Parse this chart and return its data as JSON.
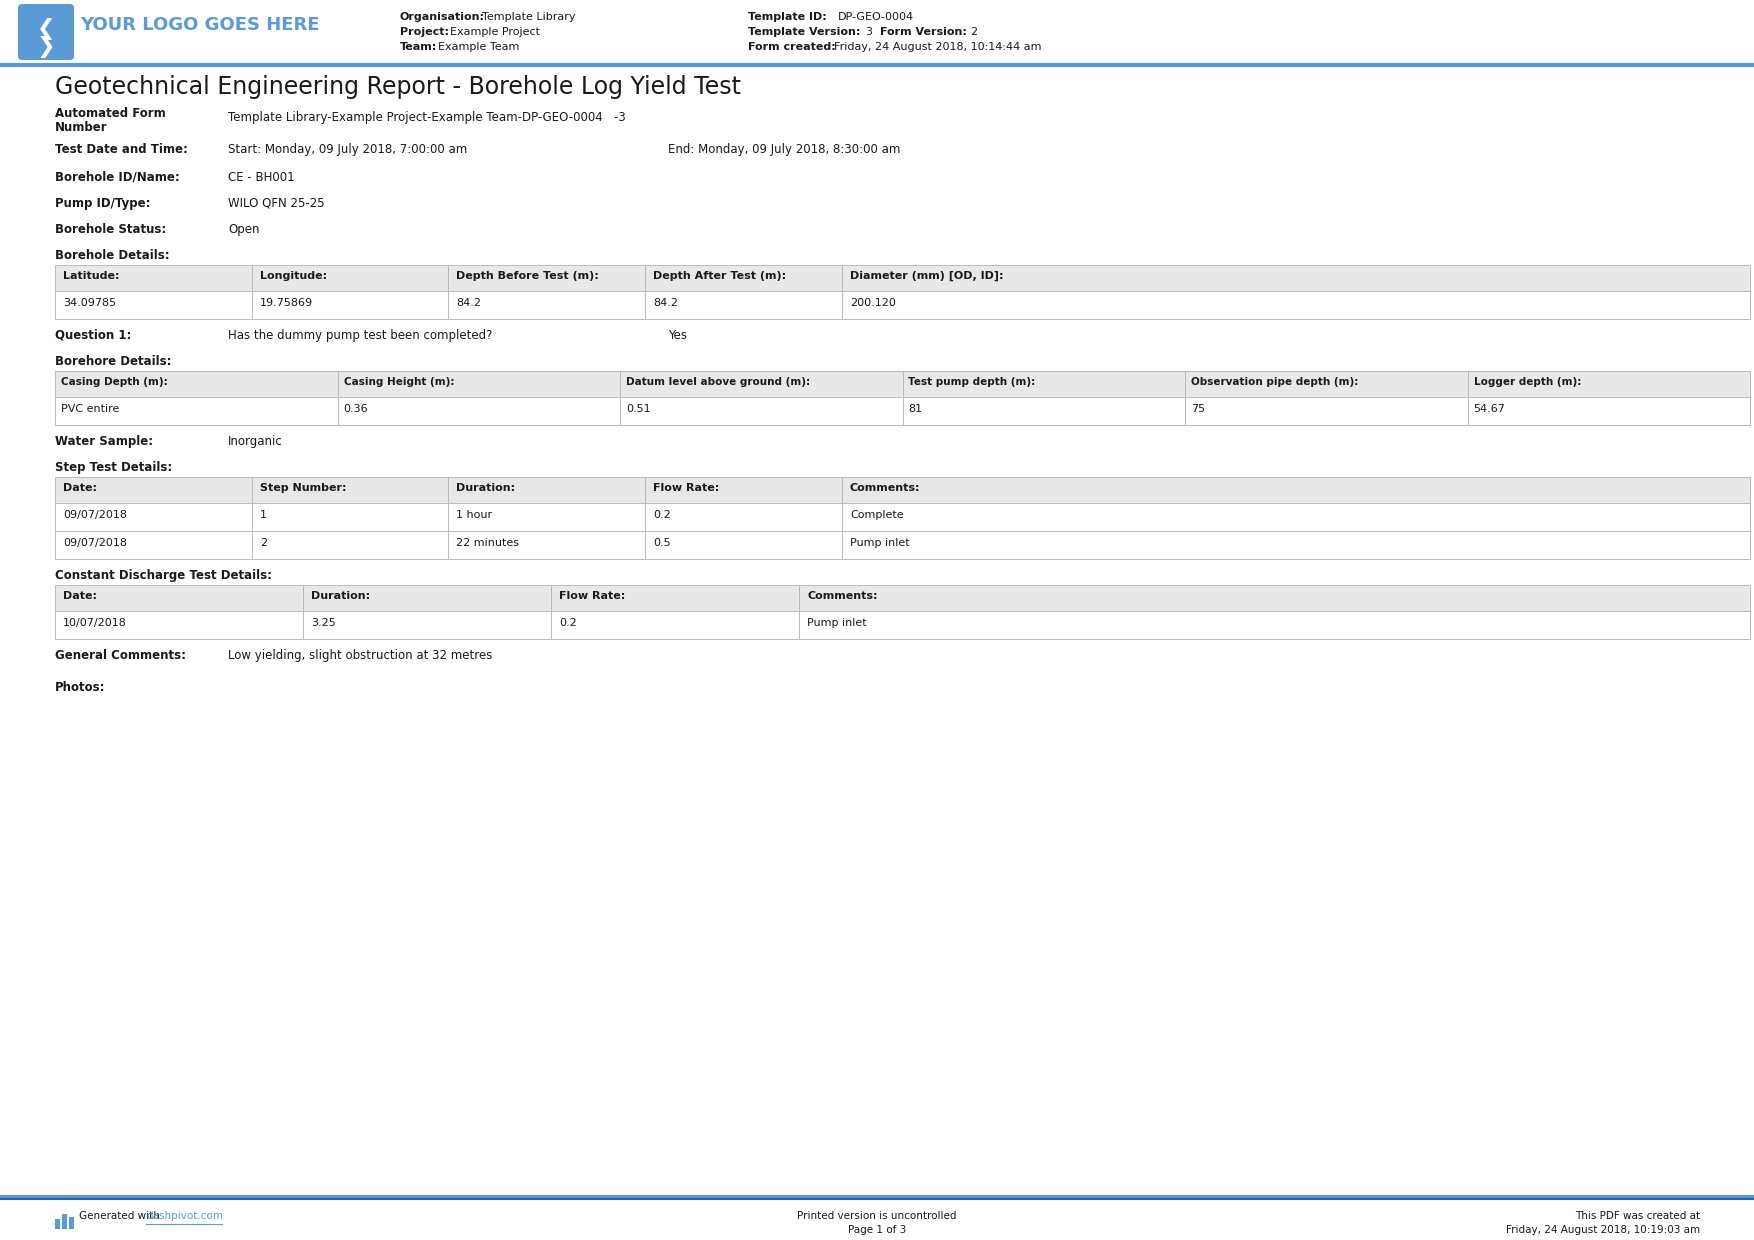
{
  "title": "Geotechnical Engineering Report - Borehole Log Yield Test",
  "header": {
    "logo_text": "YOUR LOGO GOES HERE",
    "org_label": "Organisation:",
    "org_value": "Template Library",
    "project_label": "Project:",
    "project_value": "Example Project",
    "team_label": "Team:",
    "team_value": "Example Team",
    "template_id_label": "Template ID:",
    "template_id_value": "DP-GEO-0004",
    "template_ver_label": "Template Version:",
    "template_ver_value": "3  ",
    "form_ver_label": "Form Version:",
    "form_ver_value": "2",
    "form_created_label": "Form created:",
    "form_created_value": "Friday, 24 August 2018, 10:14:44 am"
  },
  "auto_form_label_1": "Automated Form",
  "auto_form_label_2": "Number",
  "auto_form_value": "Template Library-Example Project-Example Team-DP-GEO-0004   -3",
  "test_date_label": "Test Date and Time:",
  "test_date_start": "Start: Monday, 09 July 2018, 7:00:00 am",
  "test_date_end": "End: Monday, 09 July 2018, 8:30:00 am",
  "borehole_id_label": "Borehole ID/Name:",
  "borehole_id_value": "CE - BH001",
  "pump_id_label": "Pump ID/Type:",
  "pump_id_value": "WILO QFN 25-25",
  "borehole_status_label": "Borehole Status:",
  "borehole_status_value": "Open",
  "borehole_details_label": "Borehole Details:",
  "borehole_table1_headers": [
    "Latitude:",
    "Longitude:",
    "Depth Before Test (m):",
    "Depth After Test (m):",
    "Diameter (mm) [OD, ID]:"
  ],
  "borehole_table1_values": [
    "34.09785",
    "19.75869",
    "84.2",
    "84.2",
    "200.120"
  ],
  "question1_label": "Question 1:",
  "question1_text": "Has the dummy pump test been completed?",
  "question1_answer": "Yes",
  "borehole_details2_label": "Borehore Details:",
  "borehole_table2_headers": [
    "Casing Depth (m):",
    "Casing Height (m):",
    "Datum level above ground (m):",
    "Test pump depth (m):",
    "Observation pipe depth (m):",
    "Logger depth (m):"
  ],
  "borehole_table2_values": [
    "PVC entire",
    "0.36",
    "0.51",
    "81",
    "75",
    "54.67"
  ],
  "water_sample_label": "Water Sample:",
  "water_sample_value": "Inorganic",
  "step_test_label": "Step Test Details:",
  "step_table_headers": [
    "Date:",
    "Step Number:",
    "Duration:",
    "Flow Rate:",
    "Comments:"
  ],
  "step_table_rows": [
    [
      "09/07/2018",
      "1",
      "1 hour",
      "0.2",
      "Complete"
    ],
    [
      "09/07/2018",
      "2",
      "22 minutes",
      "0.5",
      "Pump inlet"
    ]
  ],
  "constant_discharge_label": "Constant Discharge Test Details:",
  "constant_table_headers": [
    "Date:",
    "Duration:",
    "Flow Rate:",
    "Comments:"
  ],
  "constant_table_rows": [
    [
      "10/07/2018",
      "3.25",
      "0.2",
      "Pump inlet"
    ]
  ],
  "general_comments_label": "General Comments:",
  "general_comments_value": "Low yielding, slight obstruction at 32 metres",
  "photos_label": "Photos:",
  "footer_generated": "Generated with ",
  "footer_url": "dashpivot.com",
  "footer_center1": "Printed version is uncontrolled",
  "footer_center2": "Page 1 of 3",
  "footer_right1": "This PDF was created at",
  "footer_right2": "Friday, 24 August 2018, 10:19:03 am",
  "accent_color": "#5b9bd5",
  "table_header_bg": "#e8e8e8",
  "table_border": "#bbbbbb",
  "text_dark": "#1a1a1a",
  "white": "#ffffff",
  "footer_line_color": "#2b5ea7"
}
